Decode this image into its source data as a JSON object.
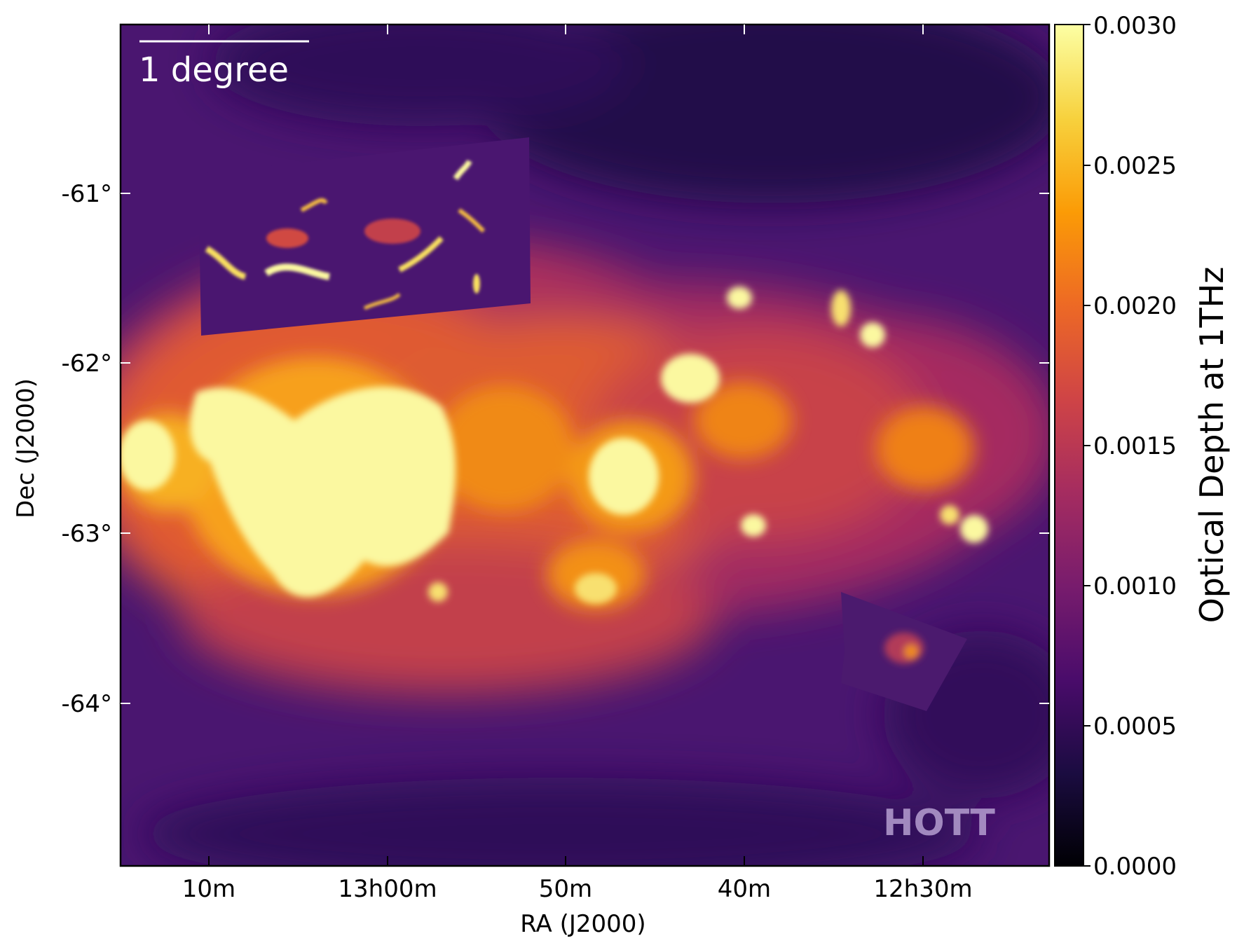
{
  "image": {
    "scale_bar_label": "1 degree",
    "watermark": "HOTT",
    "xlabel": "RA (J2000)",
    "ylabel": "Dec (J2000)",
    "x_ticks": [
      "10m",
      "13h00m",
      "50m",
      "40m",
      "12h30m"
    ],
    "y_ticks": [
      "-61°",
      "-62°",
      "-63°",
      "-64°"
    ]
  },
  "colorbar": {
    "label": "Optical Depth at 1THz",
    "range": [
      0,
      0.003
    ],
    "ticks": [
      "0.0000",
      "0.0005",
      "0.0010",
      "0.0015",
      "0.0020",
      "0.0025",
      "0.0030"
    ],
    "colormap": "inferno",
    "stops": [
      "#000004",
      "#1b0c41",
      "#4a0c6b",
      "#781c6d",
      "#a52c60",
      "#cf4446",
      "#ed6925",
      "#fb9b06",
      "#f7d13d",
      "#fcffa4"
    ]
  }
}
